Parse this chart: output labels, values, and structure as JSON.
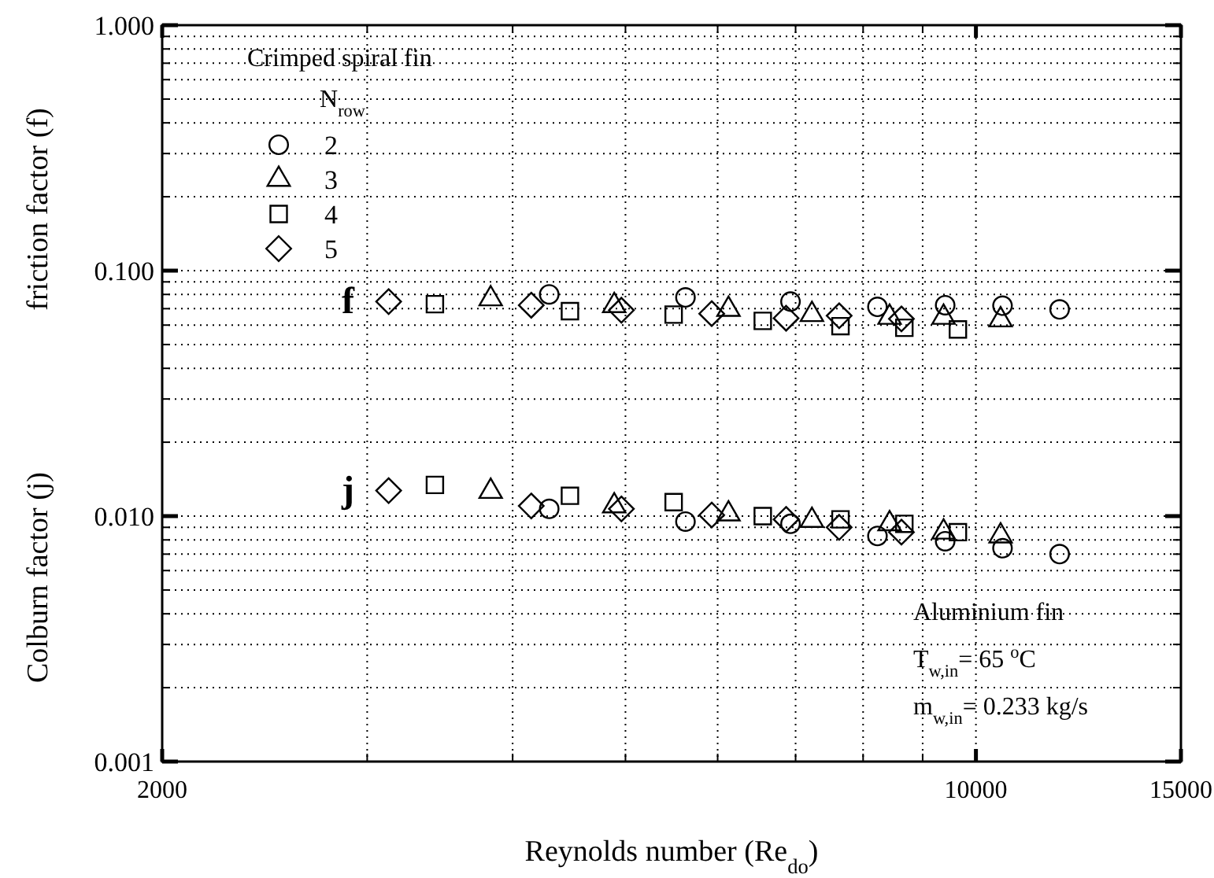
{
  "chart_data": {
    "type": "scatter",
    "xlabel": "Reynolds number (Re$_{do}$)",
    "ylabel": "friction factor (f)",
    "y2label": "Colburn factor (j)",
    "log": "xy",
    "grid": true,
    "legend": "top left",
    "legend_title": "Crimped spiral fin\nN$_{row}$",
    "xlim": [
      2000,
      15000
    ],
    "xticks": [
      2000,
      {
        "value": 3000,
        "label": null
      },
      {
        "value": 4000,
        "label": null
      },
      {
        "value": 5000,
        "label": null
      },
      {
        "value": 6000,
        "label": null
      },
      {
        "value": 7000,
        "label": null
      },
      {
        "value": 8000,
        "label": null
      },
      {
        "value": 9000,
        "label": null
      },
      10000,
      15000
    ],
    "ylim": [
      0.001,
      1
    ],
    "yticks": [
      {
        "value": 0.001,
        "label": "0.001"
      },
      {
        "value": 0.002,
        "label": null
      },
      {
        "value": 0.003,
        "label": null
      },
      {
        "value": 0.004,
        "label": null
      },
      {
        "value": 0.005,
        "label": null
      },
      {
        "value": 0.006,
        "label": null
      },
      {
        "value": 0.007,
        "label": null
      },
      {
        "value": 0.008,
        "label": null
      },
      {
        "value": 0.009,
        "label": null
      },
      {
        "value": 0.01,
        "label": "0.010"
      },
      {
        "value": 0.02,
        "label": null
      },
      {
        "value": 0.03,
        "label": null
      },
      {
        "value": 0.04,
        "label": null
      },
      {
        "value": 0.05,
        "label": null
      },
      {
        "value": 0.06,
        "label": null
      },
      {
        "value": 0.07,
        "label": null
      },
      {
        "value": 0.08,
        "label": null
      },
      {
        "value": 0.09,
        "label": null
      },
      {
        "value": 0.1,
        "label": "0.100"
      },
      {
        "value": 0.2,
        "label": null
      },
      {
        "value": 0.3,
        "label": null
      },
      {
        "value": 0.4,
        "label": null
      },
      {
        "value": 0.5,
        "label": null
      },
      {
        "value": 0.6,
        "label": null
      },
      {
        "value": 0.7,
        "label": null
      },
      {
        "value": 0.8,
        "label": null
      },
      {
        "value": 0.9,
        "label": null
      },
      {
        "value": 1,
        "label": "1.000"
      }
    ],
    "series": [
      {
        "name": "2",
        "color": "#000000",
        "marker": "circle",
        "x": [
          4300,
          5630,
          6930,
          8230,
          9410,
          10540,
          11800,
          4300,
          5630,
          6930,
          8230,
          9410,
          10540,
          11800
        ],
        "values": [
          0.08,
          0.0778,
          0.0748,
          0.0712,
          0.0723,
          0.072,
          0.0695,
          0.0107,
          0.0095,
          0.0093,
          0.0083,
          0.0079,
          0.0074,
          0.007
        ]
      },
      {
        "name": "3",
        "color": "#000000",
        "marker": "triangle",
        "x": [
          3830,
          4890,
          6130,
          7230,
          8430,
          9380,
          10500,
          3830,
          4890,
          6130,
          7230,
          8430,
          9380,
          10500
        ],
        "values": [
          0.0767,
          0.072,
          0.0695,
          0.0662,
          0.0645,
          0.0645,
          0.063,
          0.0126,
          0.011,
          0.0102,
          0.0096,
          0.0093,
          0.0086,
          0.0083
        ]
      },
      {
        "name": "4",
        "color": "#000000",
        "marker": "square",
        "x": [
          3430,
          4480,
          5500,
          6560,
          7650,
          8680,
          9650,
          3430,
          4480,
          5500,
          6560,
          7650,
          8680,
          9650
        ],
        "values": [
          0.073,
          0.0684,
          0.0662,
          0.0624,
          0.0594,
          0.0585,
          0.0576,
          0.0134,
          0.0121,
          0.0114,
          0.01,
          0.0097,
          0.0093,
          0.0086
        ]
      },
      {
        "name": "5",
        "color": "#000000",
        "marker": "diamond",
        "x": [
          3130,
          4150,
          4960,
          5930,
          6870,
          7630,
          8630,
          3130,
          4150,
          4960,
          5930,
          6870,
          7630,
          8630
        ],
        "values": [
          0.0748,
          0.0723,
          0.069,
          0.0668,
          0.064,
          0.0655,
          0.0636,
          0.0127,
          0.011,
          0.0107,
          0.0101,
          0.0097,
          0.009,
          0.0086
        ]
      }
    ],
    "annotations": [
      "f",
      "j",
      "Aluminium fin",
      "T$_{w,in}$= 65 $^{o}$C",
      "m$_{w,in}$= 0.233 kg/s"
    ]
  }
}
